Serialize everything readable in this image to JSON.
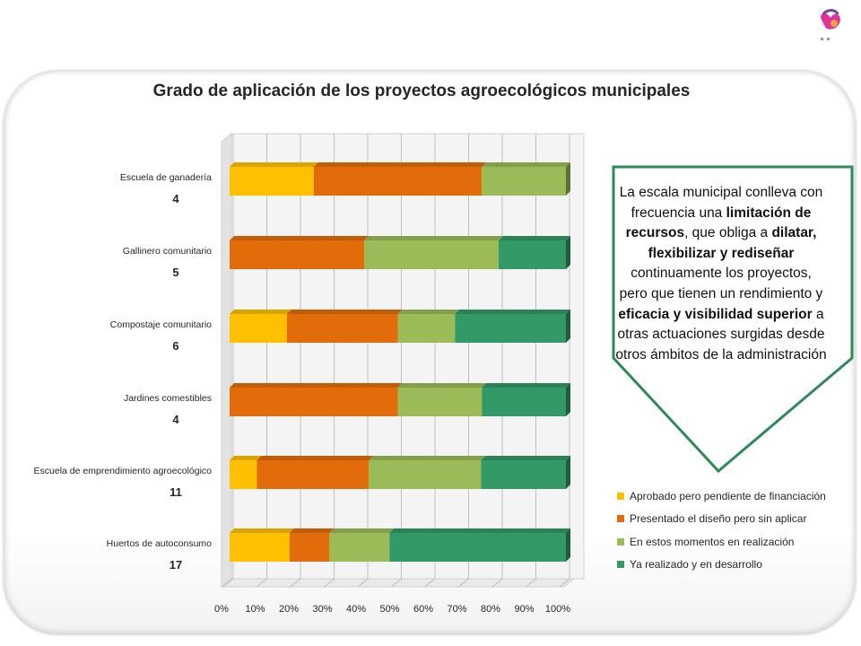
{
  "chart_data": {
    "type": "bar",
    "stacked": "100%",
    "orientation": "horizontal",
    "title": "Grado de aplicación de los proyectos agroecológicos municipales",
    "categories": [
      "Escuela de ganadería",
      "Gallinero comunitario",
      "Compostaje comunitario",
      "Jardines comestibles",
      "Escuela de emprendimiento agroecológico",
      "Huertos de autoconsumo"
    ],
    "counts": [
      "4",
      "5",
      "6",
      "4",
      "11",
      "17"
    ],
    "series": [
      {
        "name": "Aprobado pero pendiente de financiación",
        "color": "#ffc000",
        "values": [
          25,
          0,
          17,
          0,
          8,
          18
        ]
      },
      {
        "name": "Presentado el diseño pero sin aplicar",
        "color": "#e36c0a",
        "values": [
          50,
          40,
          33,
          50,
          33,
          12
        ]
      },
      {
        "name": "En estos momentos en realización",
        "color": "#9bbb59",
        "values": [
          25,
          40,
          17,
          25,
          33,
          18
        ]
      },
      {
        "name": "Ya realizado y en desarrollo",
        "color": "#339966",
        "values": [
          0,
          20,
          33,
          25,
          25,
          53
        ]
      }
    ],
    "x_ticks": [
      "0%",
      "10%",
      "20%",
      "30%",
      "40%",
      "50%",
      "60%",
      "70%",
      "80%",
      "90%",
      "100%"
    ],
    "xlim": [
      0,
      100
    ],
    "grid": true,
    "legend_position": "right"
  },
  "callout": {
    "parts": [
      {
        "text": "La escala municipal conlleva con frecuencia una ",
        "bold": false
      },
      {
        "text": "limitación de recursos",
        "bold": true
      },
      {
        "text": ", que obliga a ",
        "bold": false
      },
      {
        "text": "dilatar, flexibilizar y rediseñar",
        "bold": true
      },
      {
        "text": " continuamente los proyectos, pero que tienen un rendimiento y ",
        "bold": false
      },
      {
        "text": "eficacia y visibilidad superior",
        "bold": true
      },
      {
        "text": " a  otras actuaciones surgidas desde otros ámbitos de la administración",
        "bold": false
      }
    ],
    "border_color": "#2e8b57"
  },
  "logo_icon": "butterfly-logo-icon"
}
